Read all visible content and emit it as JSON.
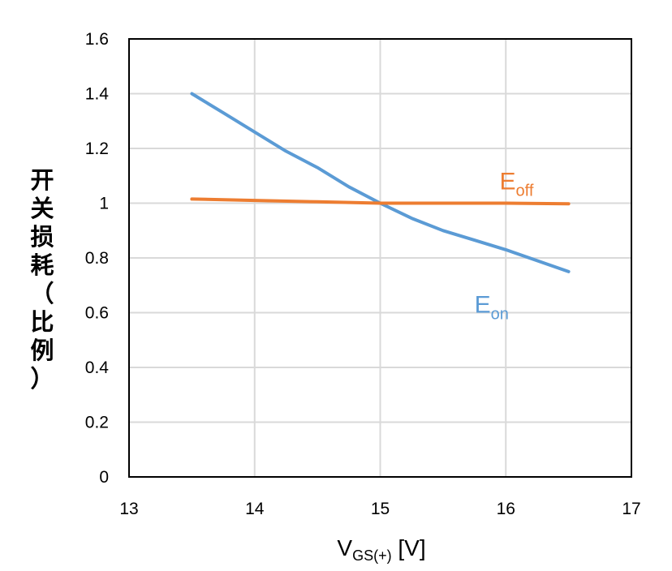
{
  "chart_data": {
    "type": "line",
    "xlabel": "V",
    "xlabel_sub": "GS(+)",
    "xlabel_unit": " [V]",
    "ylabel": "开关损耗（比例）",
    "xlim": [
      13,
      17
    ],
    "ylim": [
      0,
      1.6
    ],
    "x_ticks": [
      "13",
      "14",
      "15",
      "16",
      "17"
    ],
    "y_ticks": [
      "0",
      "0.2",
      "0.4",
      "0.6",
      "0.8",
      "1",
      "1.2",
      "1.4",
      "1.6"
    ],
    "grid": true,
    "series": [
      {
        "name": "E",
        "name_sub": "on",
        "color": "#5b9bd5",
        "x": [
          13.5,
          13.75,
          14.0,
          14.25,
          14.5,
          14.75,
          15.0,
          15.25,
          15.5,
          15.75,
          16.0,
          16.25,
          16.5
        ],
        "y": [
          1.4,
          1.33,
          1.26,
          1.19,
          1.13,
          1.06,
          1.0,
          0.945,
          0.9,
          0.865,
          0.83,
          0.79,
          0.75
        ]
      },
      {
        "name": "E",
        "name_sub": "off",
        "color": "#ed7d31",
        "x": [
          13.5,
          14.0,
          14.5,
          15.0,
          15.5,
          16.0,
          16.5
        ],
        "y": [
          1.015,
          1.01,
          1.005,
          1.0,
          1.0,
          1.0,
          0.998
        ]
      }
    ]
  }
}
